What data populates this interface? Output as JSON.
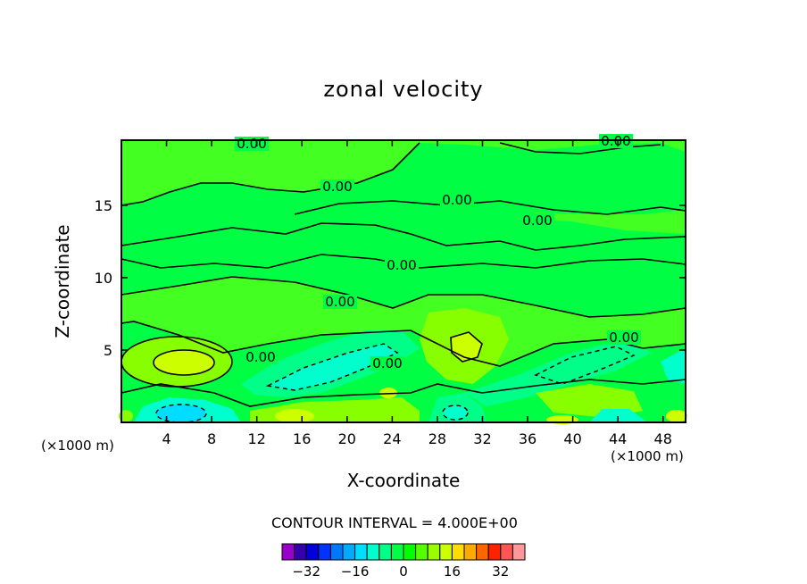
{
  "chart_data": {
    "type": "heatmap",
    "title": "zonal velocity",
    "xlabel": "X-coordinate",
    "ylabel": "Z-coordinate",
    "x_unit_left": "(×1000 m)",
    "x_unit_right": "(×1000 m)",
    "xlim": [
      0,
      50
    ],
    "ylim": [
      0,
      19.5
    ],
    "x_ticks": [
      4,
      8,
      12,
      16,
      20,
      24,
      28,
      32,
      36,
      40,
      44,
      48
    ],
    "y_ticks": [
      5,
      10,
      15
    ],
    "contour_interval_text": "CONTOUR INTERVAL = 4.000E+00",
    "contour_labels": [
      "0.00",
      "0.00",
      "0.00",
      "0.00",
      "0.00",
      "0.00",
      "0.00",
      "0.00",
      "0.00",
      "0.00"
    ],
    "colorbar": {
      "tick_labels": [
        "−32",
        "−16",
        "0",
        "16",
        "32"
      ],
      "tick_values": [
        -32,
        -16,
        0,
        16,
        32
      ],
      "colors": [
        "#9900cc",
        "#3300aa",
        "#0000dd",
        "#0033ff",
        "#0077ff",
        "#00aaff",
        "#00ddff",
        "#00ffcc",
        "#00ff88",
        "#00ff44",
        "#00ff00",
        "#55ff00",
        "#99ff00",
        "#ccff00",
        "#ffdd00",
        "#ffaa00",
        "#ff6600",
        "#ff2200",
        "#ff5555",
        "#ff9999"
      ]
    },
    "regions": [
      {
        "name": "background",
        "value": 0
      },
      {
        "name": "upper-positive-band",
        "value": 4
      },
      {
        "name": "left-jet-core",
        "value": 12
      },
      {
        "name": "central-positive-core",
        "value": 8
      },
      {
        "name": "mid-negative-band",
        "value": -4
      },
      {
        "name": "lower-negative-band",
        "value": -8
      },
      {
        "name": "bottom-negative-cell",
        "value": -12
      },
      {
        "name": "bottom-positive-cells",
        "value": 8
      }
    ]
  }
}
